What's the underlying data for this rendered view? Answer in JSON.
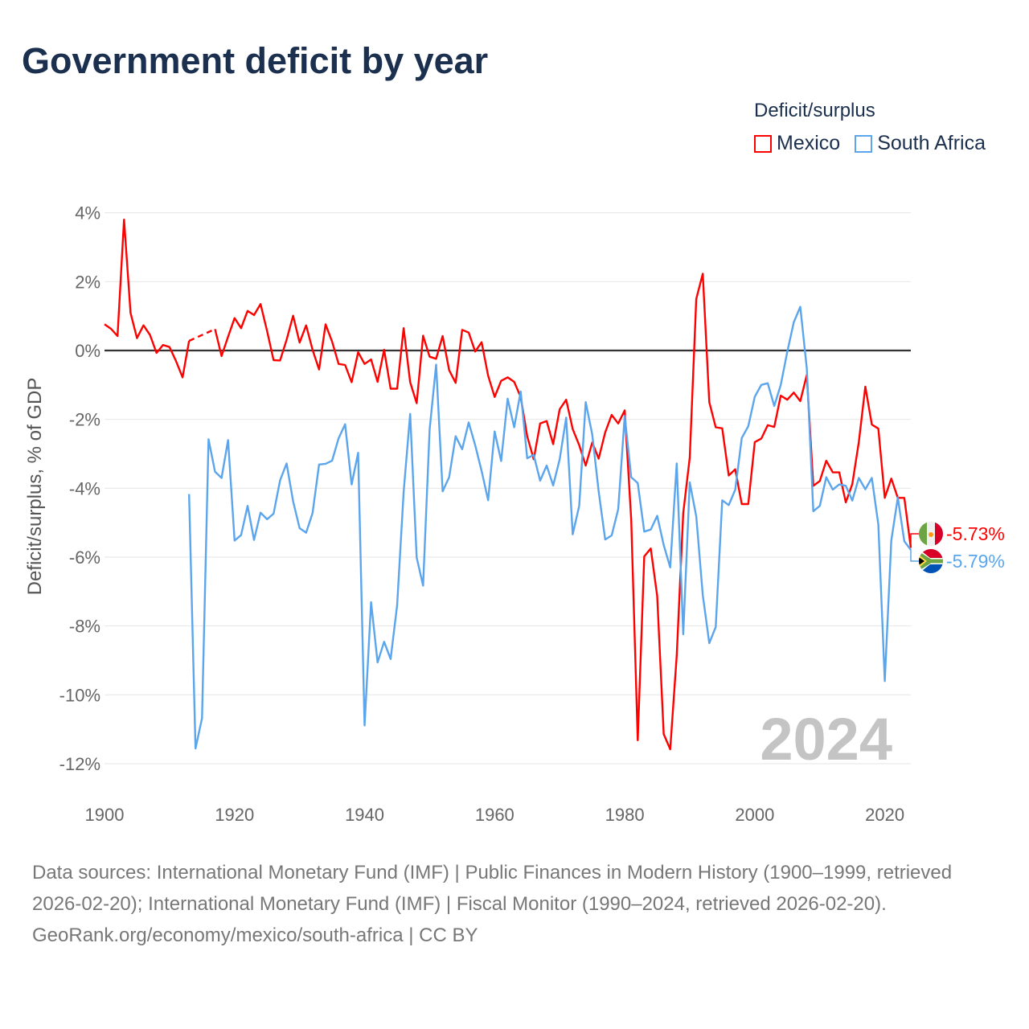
{
  "title": "Government deficit by year",
  "legend": {
    "title": "Deficit/surplus",
    "items": [
      {
        "label": "Mexico",
        "color": "#ff0000"
      },
      {
        "label": "South Africa",
        "color": "#5ba5ec"
      }
    ]
  },
  "year_watermark": "2024",
  "chart_data": {
    "type": "line",
    "title": "Government deficit by year",
    "ylabel": "Deficit/surplus, % of GDP",
    "xlabel": "",
    "xlim": [
      1900,
      2024
    ],
    "ylim": [
      -12,
      4
    ],
    "yticks": [
      4,
      2,
      0,
      -2,
      -4,
      -6,
      -8,
      -10,
      -12
    ],
    "ytick_labels": [
      "4%",
      "2%",
      "0%",
      "-2%",
      "-4%",
      "-6%",
      "-8%",
      "-10%",
      "-12%"
    ],
    "xticks": [
      1900,
      1920,
      1940,
      1960,
      1980,
      2000,
      2020
    ],
    "xtick_labels": [
      "1900",
      "1920",
      "1940",
      "1960",
      "1980",
      "2000",
      "2020"
    ],
    "grid": true,
    "legend_position": "top-right",
    "series": [
      {
        "name": "Mexico",
        "color": "#ff0000",
        "start_year": 1900,
        "end_label": "-5.73%",
        "values": [
          0.76,
          0.63,
          0.42,
          3.8,
          1.09,
          0.36,
          0.73,
          0.45,
          -0.07,
          0.16,
          0.1,
          -0.31,
          -0.78,
          0.28,
          null,
          null,
          null,
          0.62,
          -0.16,
          0.4,
          0.94,
          0.65,
          1.15,
          1.03,
          1.35,
          0.57,
          -0.28,
          -0.29,
          0.31,
          1.01,
          0.23,
          0.73,
          0.02,
          -0.55,
          0.76,
          0.26,
          -0.39,
          -0.42,
          -0.92,
          -0.05,
          -0.39,
          -0.26,
          -0.91,
          0.02,
          -1.11,
          -1.11,
          0.65,
          -0.92,
          -1.53,
          0.43,
          -0.18,
          -0.24,
          0.42,
          -0.57,
          -0.94,
          0.6,
          0.52,
          -0.03,
          0.24,
          -0.73,
          -1.35,
          -0.88,
          -0.78,
          -0.91,
          -1.35,
          -2.49,
          -3.16,
          -2.12,
          -2.05,
          -2.72,
          -1.71,
          -1.43,
          -2.28,
          -2.75,
          -3.34,
          -2.67,
          -3.14,
          -2.38,
          -1.87,
          -2.12,
          -1.74,
          -4.92,
          -11.32,
          -5.98,
          -5.75,
          -7.13,
          -11.14,
          -11.58,
          -8.86,
          -4.72,
          -3.11,
          1.5,
          2.23,
          -1.5,
          -2.23,
          -2.26,
          -3.63,
          -3.45,
          -4.46,
          -4.46,
          -2.66,
          -2.56,
          -2.17,
          -2.22,
          -1.31,
          -1.43,
          -1.22,
          -1.47,
          -0.71,
          -3.93,
          -3.79,
          -3.2,
          -3.54,
          -3.54,
          -4.41,
          -3.88,
          -2.66,
          -1.05,
          -2.15,
          -2.27,
          -4.28,
          -3.72,
          -4.28,
          -4.28,
          -5.73
        ]
      },
      {
        "name": "South Africa",
        "color": "#5ba5ec",
        "start_year": 1913,
        "end_label": "-5.79%",
        "values": [
          -4.17,
          -11.56,
          -10.68,
          -2.58,
          -3.52,
          -3.7,
          -2.6,
          -5.52,
          -5.36,
          -4.51,
          -5.5,
          -4.71,
          -4.9,
          -4.74,
          -3.77,
          -3.28,
          -4.38,
          -5.16,
          -5.29,
          -4.72,
          -3.31,
          -3.29,
          -3.2,
          -2.55,
          -2.14,
          -3.89,
          -2.97,
          -10.89,
          -7.31,
          -9.06,
          -8.46,
          -8.96,
          -7.4,
          -4.11,
          -1.84,
          -6.01,
          -6.83,
          -2.3,
          -0.41,
          -4.09,
          -3.68,
          -2.49,
          -2.87,
          -2.09,
          -2.75,
          -3.5,
          -4.35,
          -2.35,
          -3.21,
          -1.4,
          -2.23,
          -1.19,
          -3.13,
          -3.03,
          -3.78,
          -3.34,
          -3.92,
          -3.16,
          -1.95,
          -5.34,
          -4.51,
          -1.5,
          -2.44,
          -4.09,
          -5.49,
          -5.37,
          -4.61,
          -1.9,
          -3.68,
          -3.85,
          -5.26,
          -5.2,
          -4.8,
          -5.65,
          -6.3,
          -3.28,
          -8.24,
          -3.83,
          -4.82,
          -7.1,
          -8.5,
          -8.03,
          -4.35,
          -4.49,
          -4.04,
          -2.54,
          -2.2,
          -1.34,
          -1.0,
          -0.95,
          -1.61,
          -1.0,
          -0.04,
          0.82,
          1.27,
          -0.52,
          -4.67,
          -4.51,
          -3.68,
          -4.04,
          -3.89,
          -3.93,
          -4.36,
          -3.7,
          -4.03,
          -3.7,
          -5.06,
          -9.6,
          -5.52,
          -4.27,
          -5.54,
          -5.79
        ]
      }
    ]
  },
  "footer": {
    "sources": "Data sources: International Monetary Fund (IMF) | Public Finances in Modern History (1900–1999, retrieved 2026-02-20); International Monetary Fund (IMF) | Fiscal Monitor (1990–2024, retrieved 2026-02-20).",
    "credit": "GeoRank.org/economy/mexico/south-africa | CC BY"
  }
}
